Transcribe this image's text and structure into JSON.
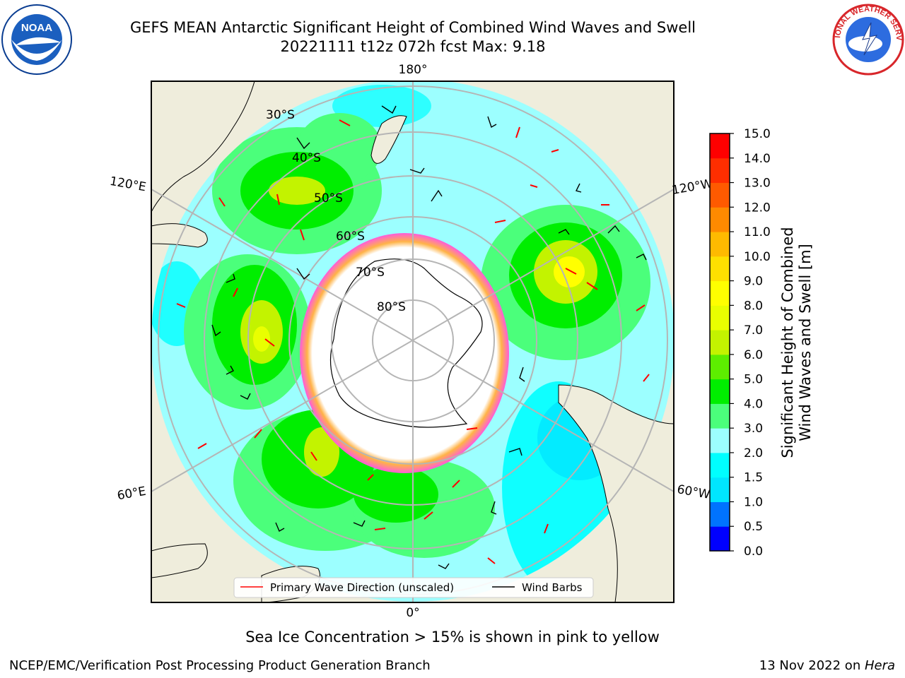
{
  "header": {
    "title_line1": "GEFS MEAN Antarctic Significant Height of Combined Wind Waves and Swell",
    "title_line2": "20221111 t12z 072h fcst   Max: 9.18"
  },
  "logos": {
    "left": "noaa-logo",
    "right": "national-weather-service-logo",
    "left_text": "NOAA",
    "right_text": "NATIONAL WEATHER SERVICE"
  },
  "map": {
    "projection": "south-polar-stereographic",
    "longitude_labels": {
      "top": "180°",
      "bottom": "0°",
      "left_upper": "120°E",
      "right_upper": "120°W",
      "left_lower": "60°E",
      "right_lower": "60°W"
    },
    "latitude_labels": [
      "30°S",
      "40°S",
      "50°S",
      "60°S",
      "70°S",
      "80°S"
    ],
    "legend": {
      "wave_direction": "Primary Wave Direction (unscaled)",
      "wind_barbs": "Wind Barbs"
    },
    "colors": {
      "land": "#efeddc",
      "sea_ice_low": "#ff5cdb",
      "sea_ice_high": "#ffb347",
      "arrows": "#ff0000",
      "barbs": "#000000"
    }
  },
  "colorbar": {
    "title_line1": "Significant Height of Combined",
    "title_line2": "Wind Waves and Swell [m]",
    "ticks": [
      "0.0",
      "0.5",
      "1.0",
      "1.5",
      "2.0",
      "3.0",
      "4.0",
      "5.0",
      "6.0",
      "7.0",
      "8.0",
      "9.0",
      "10.0",
      "11.0",
      "12.0",
      "13.0",
      "14.0",
      "15.0"
    ],
    "colors": [
      "#0000ff",
      "#0073ff",
      "#00e6ff",
      "#00ffff",
      "#9cffff",
      "#4bff7b",
      "#00ee00",
      "#5dee00",
      "#c3f300",
      "#e9ff00",
      "#ffff00",
      "#ffe000",
      "#ffba00",
      "#ff8a00",
      "#ff5a00",
      "#ff2e00",
      "#ff0000"
    ]
  },
  "caption": "Sea Ice Concentration > 15% is shown in pink to yellow",
  "footer": {
    "credit": "NCEP/EMC/Verification Post Processing Product Generation Branch",
    "date": "13 Nov 2022 on ",
    "machine": "Hera"
  }
}
